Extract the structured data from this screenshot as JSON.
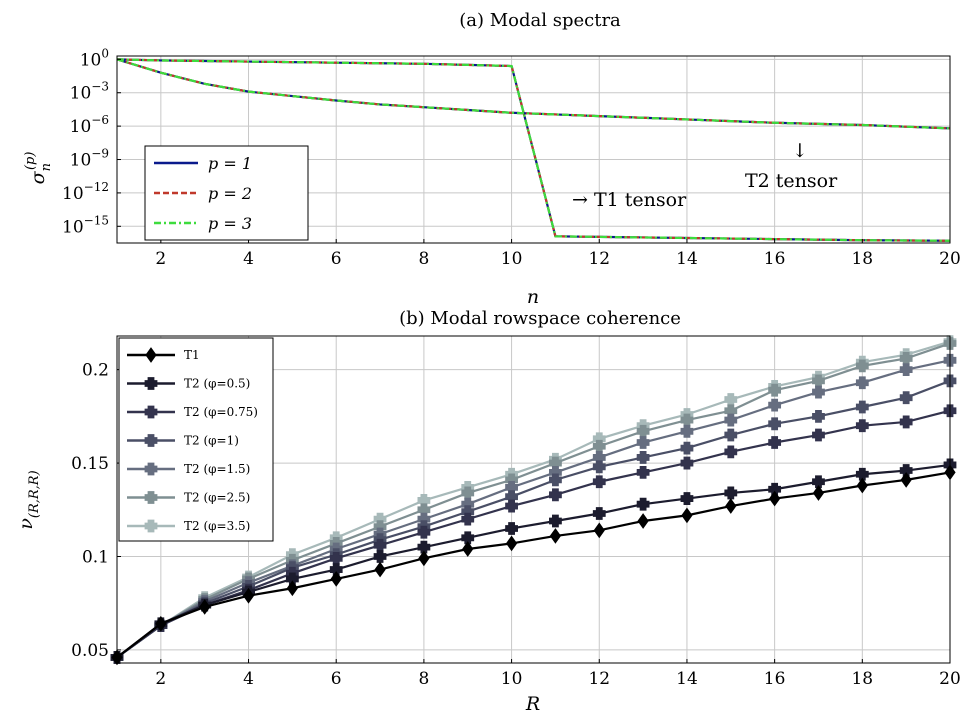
{
  "chart_data": [
    {
      "type": "line",
      "title": "(a) Modal spectra",
      "xlabel": "n",
      "ylabel": "σ_n^(p)",
      "xlim": [
        1,
        20
      ],
      "ylim_log10": [
        -16.5,
        0.3
      ],
      "yscale": "log",
      "grid": true,
      "legend_position": "bottom-left",
      "xticks": [
        "2",
        "4",
        "6",
        "8",
        "10",
        "12",
        "14",
        "16",
        "18",
        "20"
      ],
      "yticks": [
        {
          "base": "10",
          "exp": "0",
          "value": 0
        },
        {
          "base": "10",
          "exp": "−3",
          "value": -3
        },
        {
          "base": "10",
          "exp": "−6",
          "value": -6
        },
        {
          "base": "10",
          "exp": "−9",
          "value": -9
        },
        {
          "base": "10",
          "exp": "−12",
          "value": -12
        },
        {
          "base": "10",
          "exp": "−15",
          "value": -15
        }
      ],
      "series": [
        {
          "name": "p = 1",
          "color": "#0a1a8c",
          "dash": "solid"
        },
        {
          "name": "p = 2",
          "color": "#c0392b",
          "dash": "dashed"
        },
        {
          "name": "p = 3",
          "color": "#3ddc3d",
          "dash": "dashdot"
        }
      ],
      "curves": [
        {
          "label": "T1 tensor",
          "x": [
            1,
            2,
            3,
            4,
            5,
            6,
            7,
            8,
            9,
            10,
            11,
            12,
            13,
            14,
            15,
            16,
            17,
            18,
            20
          ],
          "log10_y": [
            0,
            -0.1,
            -0.15,
            -0.2,
            -0.25,
            -0.3,
            -0.35,
            -0.4,
            -0.5,
            -0.6,
            -15.9,
            -15.95,
            -16,
            -16.05,
            -16.1,
            -16.15,
            -16.2,
            -16.25,
            -16.3
          ]
        },
        {
          "label": "T2 tensor",
          "x": [
            1,
            2,
            3,
            4,
            5,
            6,
            7,
            8,
            9,
            10,
            11,
            12,
            13,
            14,
            15,
            16,
            17,
            18,
            19,
            20
          ],
          "log10_y": [
            0,
            -1.2,
            -2.2,
            -2.9,
            -3.3,
            -3.7,
            -4.05,
            -4.3,
            -4.55,
            -4.8,
            -4.95,
            -5.1,
            -5.25,
            -5.4,
            -5.55,
            -5.7,
            -5.8,
            -5.9,
            -6.05,
            -6.2
          ]
        }
      ],
      "annotations": [
        "→ T1 tensor",
        "↓",
        "T2 tensor"
      ]
    },
    {
      "type": "line",
      "title": "(b) Modal rowspace coherence",
      "xlabel": "R",
      "ylabel": "ν_(R,R,R)",
      "xlim": [
        1,
        20
      ],
      "ylim": [
        0.043,
        0.218
      ],
      "grid": true,
      "legend_position": "top-left",
      "xticks": [
        "2",
        "4",
        "6",
        "8",
        "10",
        "12",
        "14",
        "16",
        "18",
        "20"
      ],
      "yticks": [
        "0.05",
        "0.1",
        "0.15",
        "0.2"
      ],
      "x": [
        1,
        2,
        3,
        4,
        5,
        6,
        7,
        8,
        9,
        10,
        11,
        12,
        13,
        14,
        15,
        16,
        17,
        18,
        19,
        20
      ],
      "series": [
        {
          "name": "T1",
          "color": "#000000",
          "marker": "diamond",
          "values": [
            0.046,
            0.064,
            0.073,
            0.079,
            0.083,
            0.088,
            0.093,
            0.099,
            0.104,
            0.107,
            0.111,
            0.114,
            0.119,
            0.122,
            0.127,
            0.131,
            0.134,
            0.138,
            0.141,
            0.145
          ]
        },
        {
          "name": "T2 (φ=0.5)",
          "color": "#1c1c2e",
          "marker": "plus",
          "values": [
            0.046,
            0.064,
            0.074,
            0.081,
            0.088,
            0.093,
            0.1,
            0.105,
            0.11,
            0.115,
            0.119,
            0.123,
            0.128,
            0.131,
            0.134,
            0.136,
            0.14,
            0.144,
            0.146,
            0.149
          ]
        },
        {
          "name": "T2 (φ=0.75)",
          "color": "#33334d",
          "marker": "plus",
          "values": [
            0.046,
            0.063,
            0.074,
            0.082,
            0.091,
            0.099,
            0.106,
            0.113,
            0.12,
            0.127,
            0.133,
            0.14,
            0.145,
            0.15,
            0.156,
            0.161,
            0.165,
            0.17,
            0.172,
            0.178
          ]
        },
        {
          "name": "T2 (φ=1)",
          "color": "#4a4f66",
          "marker": "plus",
          "values": [
            0.046,
            0.063,
            0.075,
            0.084,
            0.094,
            0.101,
            0.109,
            0.116,
            0.124,
            0.132,
            0.141,
            0.148,
            0.153,
            0.158,
            0.165,
            0.171,
            0.175,
            0.18,
            0.185,
            0.194
          ]
        },
        {
          "name": "T2 (φ=1.5)",
          "color": "#666e80",
          "marker": "plus",
          "values": [
            0.046,
            0.063,
            0.076,
            0.086,
            0.095,
            0.104,
            0.112,
            0.12,
            0.128,
            0.137,
            0.145,
            0.153,
            0.161,
            0.167,
            0.173,
            0.181,
            0.188,
            0.193,
            0.2,
            0.205
          ]
        },
        {
          "name": "T2 (φ=2.5)",
          "color": "#7f8f92",
          "marker": "plus",
          "values": [
            0.046,
            0.063,
            0.077,
            0.088,
            0.098,
            0.107,
            0.116,
            0.125,
            0.134,
            0.141,
            0.15,
            0.159,
            0.167,
            0.173,
            0.178,
            0.189,
            0.194,
            0.202,
            0.206,
            0.214
          ]
        },
        {
          "name": "T2 (φ=3.5)",
          "color": "#a7b9b9",
          "marker": "plus",
          "values": [
            0.046,
            0.063,
            0.078,
            0.089,
            0.101,
            0.11,
            0.12,
            0.13,
            0.137,
            0.144,
            0.152,
            0.163,
            0.17,
            0.176,
            0.184,
            0.191,
            0.196,
            0.204,
            0.208,
            0.215
          ]
        }
      ]
    }
  ]
}
